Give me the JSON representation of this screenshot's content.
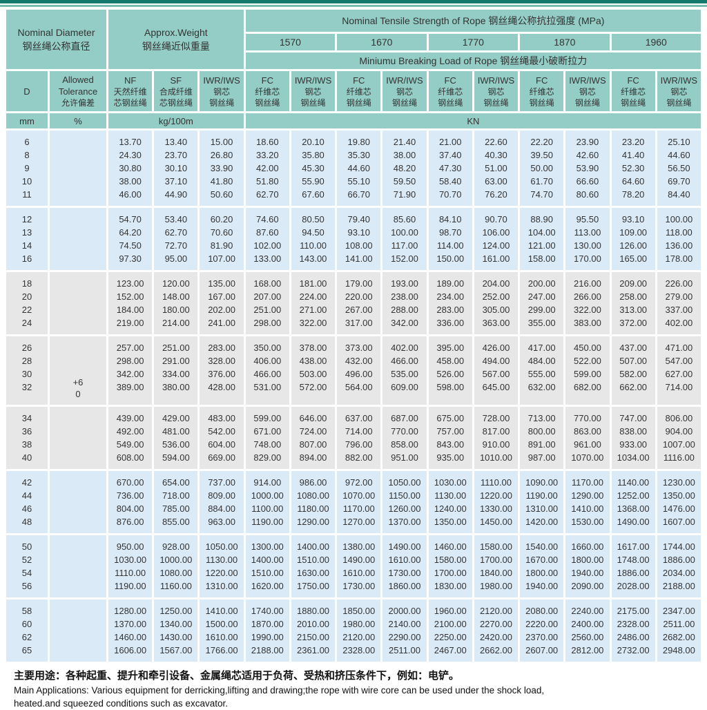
{
  "header": {
    "nominal_diameter_en": "Nominal Diameter",
    "nominal_diameter_cn": "钢丝绳公称直径",
    "approx_weight_en": "Approx.Weight",
    "approx_weight_cn": "钢丝绳近似重量",
    "tensile_strength": "Nominal Tensile Strength of Rope  钢丝绳公称抗拉强度 (MPa)",
    "strengths": [
      "1570",
      "1670",
      "1770",
      "1870",
      "1960"
    ],
    "breaking_load": "Miniumu Breaking Load of Rope  钢丝绳最小破断拉力",
    "col_d": "D",
    "col_tolerance": [
      "Allowed",
      "Tolerance",
      "允许偏差"
    ],
    "col_nf": [
      "NF",
      "天然纤维",
      "芯钢丝绳"
    ],
    "col_sf": [
      "SF",
      "合成纤维",
      "芯钢丝绳"
    ],
    "col_iwr": [
      "IWR/IWS",
      "钢芯",
      "钢丝绳"
    ],
    "col_fc": [
      "FC",
      "纤维芯",
      "钢丝绳"
    ],
    "units": {
      "mm": "mm",
      "pct": "%",
      "kg": "kg/100m",
      "kn": "KN"
    }
  },
  "colors": {
    "header_teal": "#93cdc5",
    "band_blue": "#dbeaf7",
    "band_gray": "#e7e7e7",
    "top_bar": "#15796b"
  },
  "tolerance_note": [
    "",
    "",
    "",
    "+6",
    "0"
  ],
  "groups": [
    {
      "band": "blue",
      "rows": [
        [
          "6",
          "13.70",
          "13.40",
          "15.00",
          "18.60",
          "20.10",
          "19.80",
          "21.40",
          "21.00",
          "22.60",
          "22.20",
          "23.90",
          "23.20",
          "25.10"
        ],
        [
          "8",
          "24.30",
          "23.70",
          "26.80",
          "33.20",
          "35.80",
          "35.30",
          "38.00",
          "37.40",
          "40.30",
          "39.50",
          "42.60",
          "41.40",
          "44.60"
        ],
        [
          "9",
          "30.80",
          "30.10",
          "33.90",
          "42.00",
          "45.30",
          "44.60",
          "48.20",
          "47.30",
          "51.00",
          "50.00",
          "53.90",
          "52.30",
          "56.50"
        ],
        [
          "10",
          "38.00",
          "37.10",
          "41.80",
          "51.80",
          "55.90",
          "55.10",
          "59.50",
          "58.40",
          "63.00",
          "61.70",
          "66.60",
          "64.60",
          "69.70"
        ],
        [
          "11",
          "46.00",
          "44.90",
          "50.60",
          "62.70",
          "67.60",
          "66.70",
          "71.90",
          "70.70",
          "76.20",
          "74.70",
          "80.60",
          "78.20",
          "84.40"
        ]
      ]
    },
    {
      "band": "blue",
      "rows": [
        [
          "12",
          "54.70",
          "53.40",
          "60.20",
          "74.60",
          "80.50",
          "79.40",
          "85.60",
          "84.10",
          "90.70",
          "88.90",
          "95.50",
          "93.10",
          "100.00"
        ],
        [
          "13",
          "64.20",
          "62.70",
          "70.60",
          "87.60",
          "94.50",
          "93.10",
          "100.00",
          "98.70",
          "106.00",
          "104.00",
          "113.00",
          "109.00",
          "118.00"
        ],
        [
          "14",
          "74.50",
          "72.70",
          "81.90",
          "102.00",
          "110.00",
          "108.00",
          "117.00",
          "114.00",
          "124.00",
          "121.00",
          "130.00",
          "126.00",
          "136.00"
        ],
        [
          "16",
          "97.30",
          "95.00",
          "107.00",
          "133.00",
          "143.00",
          "141.00",
          "152.00",
          "150.00",
          "161.00",
          "158.00",
          "170.00",
          "165.00",
          "178.00"
        ]
      ]
    },
    {
      "band": "gray",
      "rows": [
        [
          "18",
          "123.00",
          "120.00",
          "135.00",
          "168.00",
          "181.00",
          "179.00",
          "193.00",
          "189.00",
          "204.00",
          "200.00",
          "216.00",
          "209.00",
          "226.00"
        ],
        [
          "20",
          "152.00",
          "148.00",
          "167.00",
          "207.00",
          "224.00",
          "220.00",
          "238.00",
          "234.00",
          "252.00",
          "247.00",
          "266.00",
          "258.00",
          "279.00"
        ],
        [
          "22",
          "184.00",
          "180.00",
          "202.00",
          "251.00",
          "271.00",
          "267.00",
          "288.00",
          "283.00",
          "305.00",
          "299.00",
          "322.00",
          "313.00",
          "337.00"
        ],
        [
          "24",
          "219.00",
          "214.00",
          "241.00",
          "298.00",
          "322.00",
          "317.00",
          "342.00",
          "336.00",
          "363.00",
          "355.00",
          "383.00",
          "372.00",
          "402.00"
        ]
      ]
    },
    {
      "band": "gray",
      "has_tolerance": true,
      "rows": [
        [
          "26",
          "257.00",
          "251.00",
          "283.00",
          "350.00",
          "378.00",
          "373.00",
          "402.00",
          "395.00",
          "426.00",
          "417.00",
          "450.00",
          "437.00",
          "471.00"
        ],
        [
          "28",
          "298.00",
          "291.00",
          "328.00",
          "406.00",
          "438.00",
          "432.00",
          "466.00",
          "458.00",
          "494.00",
          "484.00",
          "522.00",
          "507.00",
          "547.00"
        ],
        [
          "30",
          "342.00",
          "334.00",
          "376.00",
          "466.00",
          "503.00",
          "496.00",
          "535.00",
          "526.00",
          "567.00",
          "555.00",
          "599.00",
          "582.00",
          "627.00"
        ],
        [
          "32",
          "389.00",
          "380.00",
          "428.00",
          "531.00",
          "572.00",
          "564.00",
          "609.00",
          "598.00",
          "645.00",
          "632.00",
          "682.00",
          "662.00",
          "714.00"
        ]
      ]
    },
    {
      "band": "gray",
      "rows": [
        [
          "34",
          "439.00",
          "429.00",
          "483.00",
          "599.00",
          "646.00",
          "637.00",
          "687.00",
          "675.00",
          "728.00",
          "713.00",
          "770.00",
          "747.00",
          "806.00"
        ],
        [
          "36",
          "492.00",
          "481.00",
          "542.00",
          "671.00",
          "724.00",
          "714.00",
          "770.00",
          "757.00",
          "817.00",
          "800.00",
          "863.00",
          "838.00",
          "904.00"
        ],
        [
          "38",
          "549.00",
          "536.00",
          "604.00",
          "748.00",
          "807.00",
          "796.00",
          "858.00",
          "843.00",
          "910.00",
          "891.00",
          "961.00",
          "933.00",
          "1007.00"
        ],
        [
          "40",
          "608.00",
          "594.00",
          "669.00",
          "829.00",
          "894.00",
          "882.00",
          "951.00",
          "935.00",
          "1010.00",
          "987.00",
          "1070.00",
          "1034.00",
          "1116.00"
        ]
      ]
    },
    {
      "band": "blue",
      "rows": [
        [
          "42",
          "670.00",
          "654.00",
          "737.00",
          "914.00",
          "986.00",
          "972.00",
          "1050.00",
          "1030.00",
          "1110.00",
          "1090.00",
          "1170.00",
          "1140.00",
          "1230.00"
        ],
        [
          "44",
          "736.00",
          "718.00",
          "809.00",
          "1000.00",
          "1080.00",
          "1070.00",
          "1150.00",
          "1130.00",
          "1220.00",
          "1190.00",
          "1290.00",
          "1252.00",
          "1350.00"
        ],
        [
          "46",
          "804.00",
          "785.00",
          "884.00",
          "1100.00",
          "1180.00",
          "1170.00",
          "1260.00",
          "1240.00",
          "1330.00",
          "1310.00",
          "1410.00",
          "1368.00",
          "1476.00"
        ],
        [
          "48",
          "876.00",
          "855.00",
          "963.00",
          "1190.00",
          "1290.00",
          "1270.00",
          "1370.00",
          "1350.00",
          "1450.00",
          "1420.00",
          "1530.00",
          "1490.00",
          "1607.00"
        ]
      ]
    },
    {
      "band": "blue",
      "rows": [
        [
          "50",
          "950.00",
          "928.00",
          "1050.00",
          "1300.00",
          "1400.00",
          "1380.00",
          "1490.00",
          "1460.00",
          "1580.00",
          "1540.00",
          "1660.00",
          "1617.00",
          "1744.00"
        ],
        [
          "52",
          "1030.00",
          "1000.00",
          "1130.00",
          "1400.00",
          "1510.00",
          "1490.00",
          "1610.00",
          "1580.00",
          "1700.00",
          "1670.00",
          "1800.00",
          "1748.00",
          "1886.00"
        ],
        [
          "54",
          "1110.00",
          "1080.00",
          "1220.00",
          "1510.00",
          "1630.00",
          "1610.00",
          "1730.00",
          "1700.00",
          "1840.00",
          "1800.00",
          "1940.00",
          "1886.00",
          "2034.00"
        ],
        [
          "56",
          "1190.00",
          "1160.00",
          "1310.00",
          "1620.00",
          "1750.00",
          "1730.00",
          "1860.00",
          "1830.00",
          "1980.00",
          "1940.00",
          "2090.00",
          "2028.00",
          "2188.00"
        ]
      ]
    },
    {
      "band": "blue",
      "rows": [
        [
          "58",
          "1280.00",
          "1250.00",
          "1410.00",
          "1740.00",
          "1880.00",
          "1850.00",
          "2000.00",
          "1960.00",
          "2120.00",
          "2080.00",
          "2240.00",
          "2175.00",
          "2347.00"
        ],
        [
          "60",
          "1370.00",
          "1340.00",
          "1500.00",
          "1870.00",
          "2010.00",
          "1980.00",
          "2140.00",
          "2100.00",
          "2270.00",
          "2220.00",
          "2400.00",
          "2328.00",
          "2511.00"
        ],
        [
          "62",
          "1460.00",
          "1430.00",
          "1610.00",
          "1990.00",
          "2150.00",
          "2120.00",
          "2290.00",
          "2250.00",
          "2420.00",
          "2370.00",
          "2560.00",
          "2486.00",
          "2682.00"
        ],
        [
          "65",
          "1606.00",
          "1567.00",
          "1766.00",
          "2188.00",
          "2361.00",
          "2328.00",
          "2511.00",
          "2467.00",
          "2662.00",
          "2607.00",
          "2812.00",
          "2732.00",
          "2948.00"
        ]
      ]
    }
  ],
  "footer": {
    "cn": "主要用途：各种起重、提升和牵引设备、金属绳芯适用于负荷、受热和挤压条件下，例如：电铲。",
    "en1": "Main Applications: Various equipment for derricking,lifting and drawing;the rope with wire core can be used under the shock load,",
    "en2": "heated.and squeezed conditions such as excavator."
  }
}
